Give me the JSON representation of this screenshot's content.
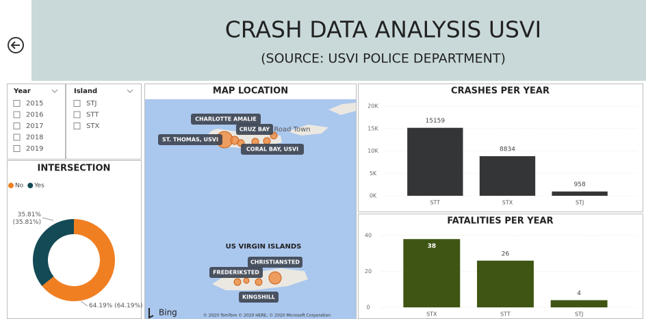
{
  "header": {
    "title": "CRASH DATA ANALYSIS USVI",
    "subtitle": "(SOURCE: USVI POLICE DEPARTMENT)"
  },
  "slicers": [
    {
      "title": "Year",
      "items": [
        "2015",
        "2016",
        "2017",
        "2018",
        "2019"
      ]
    },
    {
      "title": "Island",
      "items": [
        "STJ",
        "STT",
        "STX"
      ]
    }
  ],
  "map": {
    "title": "MAP LOCATION",
    "labels": [
      "CHARLOTTE AMALIE",
      "CRUZ BAY",
      "ST. THOMAS, USVI",
      "CORAL BAY, USVI",
      "CHRISTIANSTED",
      "FREDERIKSTED",
      "KINGSHILL"
    ],
    "places": [
      "Road Town",
      "US VIRGIN ISLANDS"
    ],
    "logo": "Bing",
    "copyright": "© 2020 TomTom © 2020 HERE, © 2020 Microsoft Corporation"
  },
  "chart_data": [
    {
      "type": "bar",
      "title": "CRASHES PER YEAR",
      "categories": [
        "STT",
        "STX",
        "STJ"
      ],
      "values": [
        15159,
        8834,
        958
      ],
      "color": "#333537",
      "ylim": [
        0,
        20000
      ],
      "yticks": [
        {
          "value": 0,
          "label": "0K"
        },
        {
          "value": 5000,
          "label": "5K"
        },
        {
          "value": 10000,
          "label": "10K"
        },
        {
          "value": 15000,
          "label": "15K"
        },
        {
          "value": 20000,
          "label": "20K"
        }
      ],
      "grid": true
    },
    {
      "type": "bar",
      "title": "FATALITIES PER YEAR",
      "categories": [
        "STX",
        "STT",
        "STJ"
      ],
      "values": [
        38,
        26,
        4
      ],
      "color": "#3f5514",
      "ylim": [
        0,
        40
      ],
      "yticks": [
        0,
        20,
        40
      ],
      "grid": true
    },
    {
      "type": "donut",
      "title": "INTERSECTION",
      "categories": [
        "No",
        "Yes"
      ],
      "values": [
        64.19,
        35.81
      ],
      "value_labels": [
        "64.19% (64.19%)",
        "35.81% (35.81%)"
      ],
      "colors": [
        "#f07f22",
        "#144a55"
      ]
    }
  ]
}
